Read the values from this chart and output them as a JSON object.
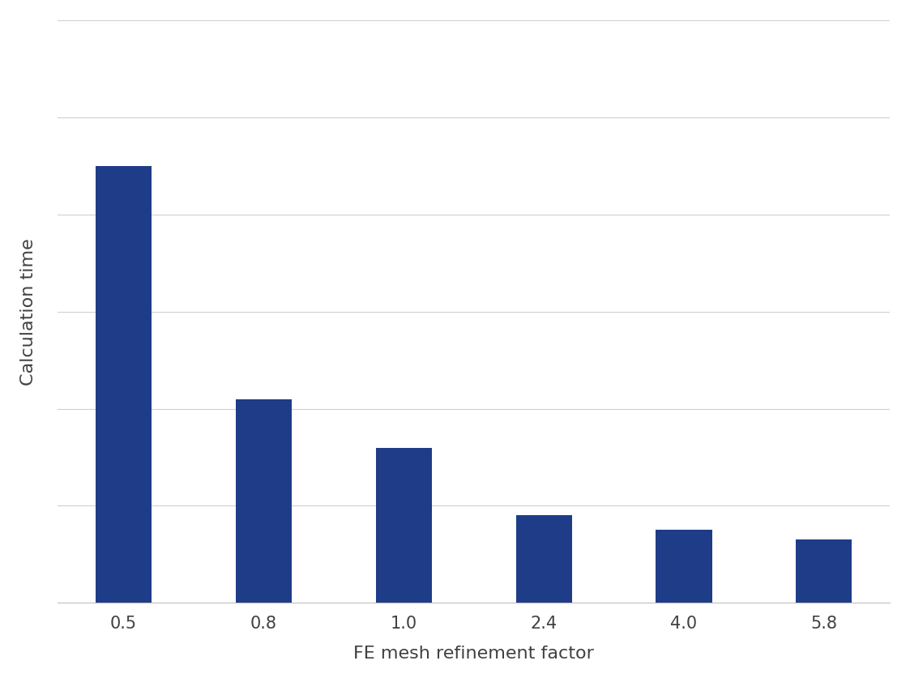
{
  "categories": [
    "0.5",
    "0.8",
    "1.0",
    "2.4",
    "4.0",
    "5.8"
  ],
  "values": [
    90,
    42,
    32,
    18,
    15,
    13
  ],
  "bar_color": "#1F3C88",
  "xlabel": "FE mesh refinement factor",
  "ylabel": "Calculation time",
  "xlabel_fontsize": 16,
  "ylabel_fontsize": 16,
  "tick_fontsize": 15,
  "bar_width": 0.4,
  "ylim": [
    0,
    120
  ],
  "yticks": [
    0,
    20,
    40,
    60,
    80,
    100,
    120
  ],
  "grid_color": "#D0D0D0",
  "background_color": "#FFFFFF",
  "figure_bg_color": "#FFFFFF"
}
